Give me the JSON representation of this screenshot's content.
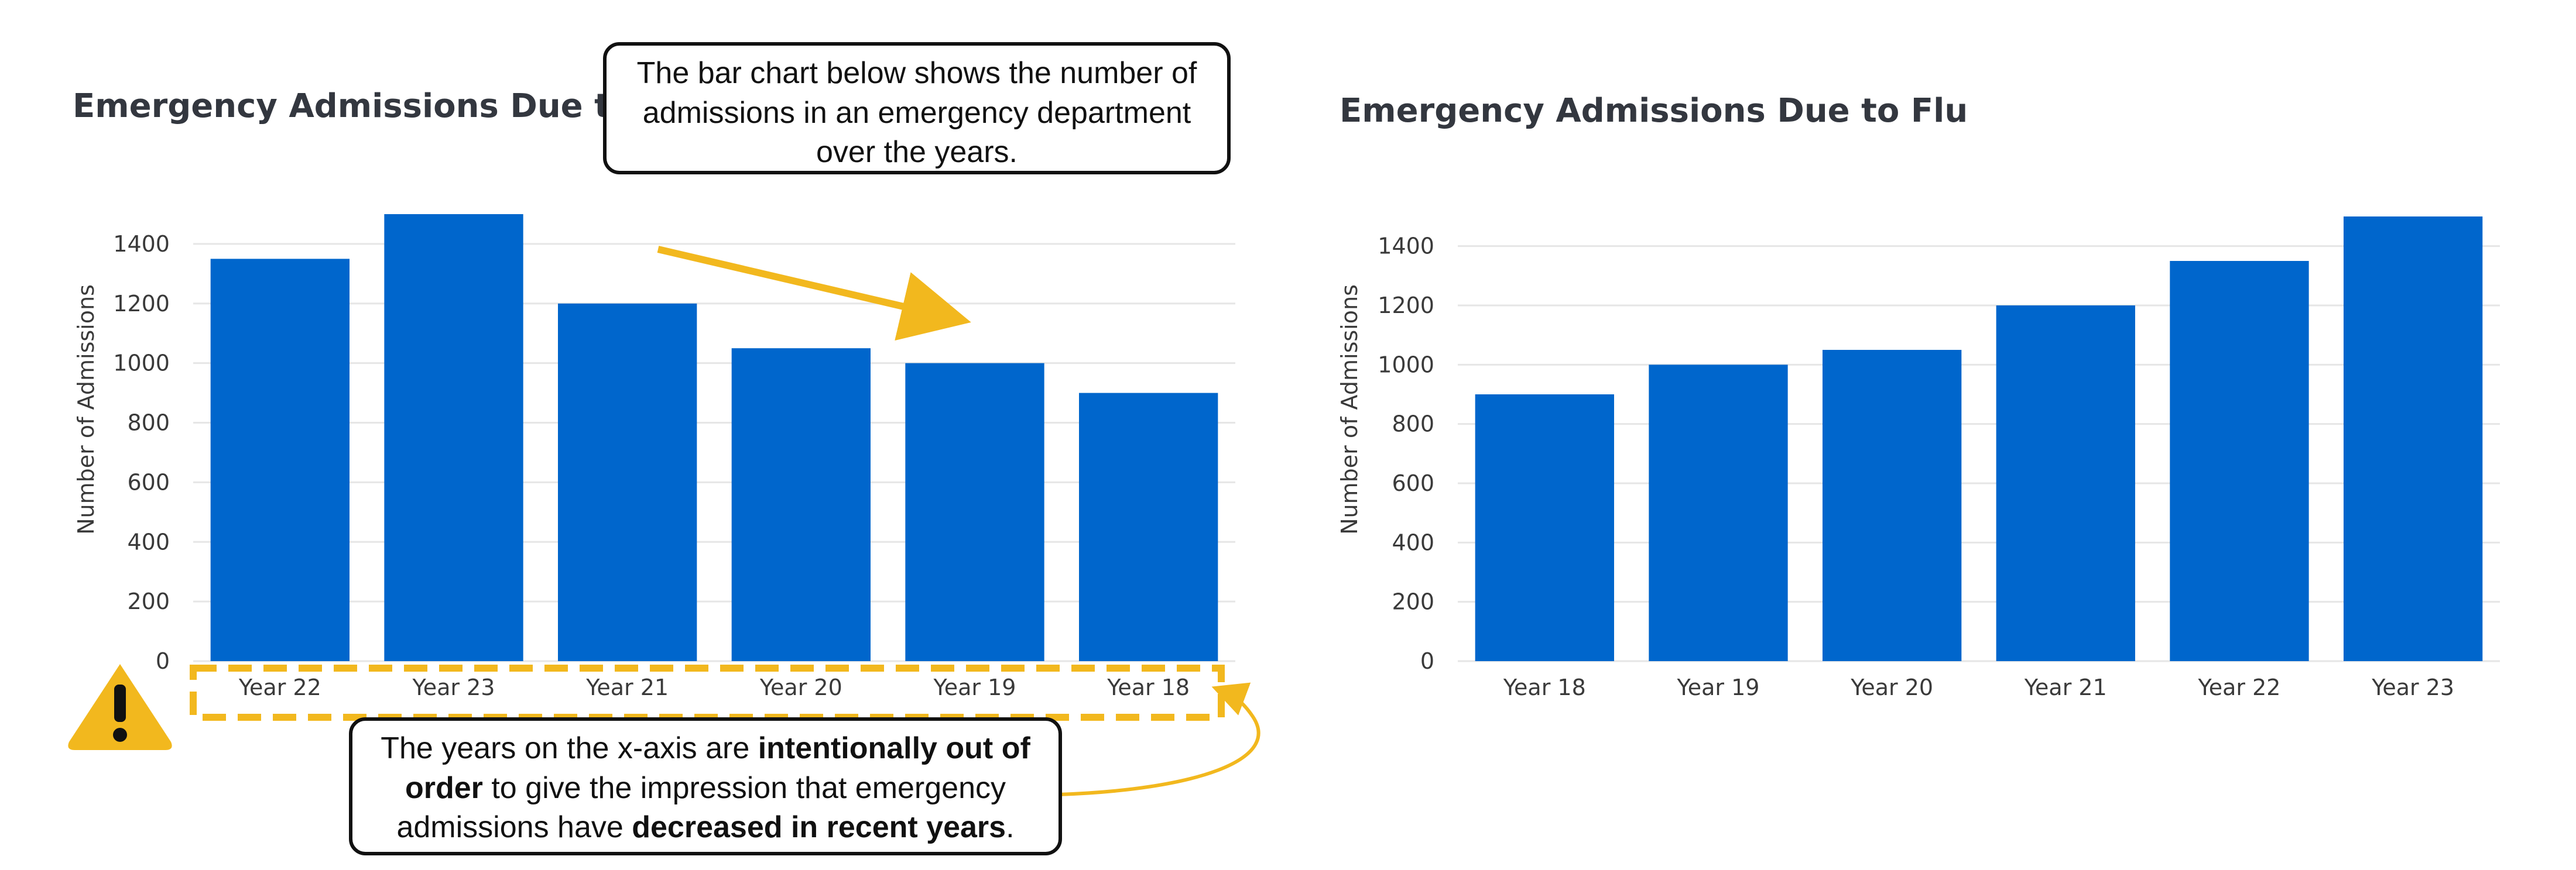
{
  "colors": {
    "bar": "#0066cc",
    "highlight": "#f2b81e",
    "text": "#33373f"
  },
  "chart_data": [
    {
      "type": "bar",
      "title": "Emergency Admissions Due to Flu",
      "ylabel": "Number of Admissions",
      "categories": [
        "Year 22",
        "Year 23",
        "Year 21",
        "Year 20",
        "Year 19",
        "Year 18"
      ],
      "values": [
        1350,
        1500,
        1200,
        1050,
        1000,
        900
      ],
      "yticks": [
        0,
        200,
        400,
        600,
        800,
        1000,
        1200,
        1400
      ],
      "ylim": [
        0,
        1500
      ],
      "grid": true
    },
    {
      "type": "bar",
      "title": "Emergency Admissions Due to Flu",
      "ylabel": "Number of Admissions",
      "categories": [
        "Year 18",
        "Year 19",
        "Year 20",
        "Year 21",
        "Year 22",
        "Year 23"
      ],
      "values": [
        900,
        1000,
        1050,
        1200,
        1350,
        1500
      ],
      "yticks": [
        0,
        200,
        400,
        600,
        800,
        1000,
        1200,
        1400
      ],
      "ylim": [
        0,
        1500
      ],
      "grid": true
    }
  ],
  "annotations": {
    "top_callout": "The bar chart below shows the number of admissions in an emergency department over the years.",
    "bottom_callout": {
      "p1": "The years on the x-axis are ",
      "b1": "intentionally out of order",
      "p2": " to give the impression that emergency admissions have ",
      "b2": "decreased in recent years",
      "p3": "."
    },
    "warning_icon": "warning-triangle-icon",
    "trend_arrow": "arrow-icon"
  }
}
